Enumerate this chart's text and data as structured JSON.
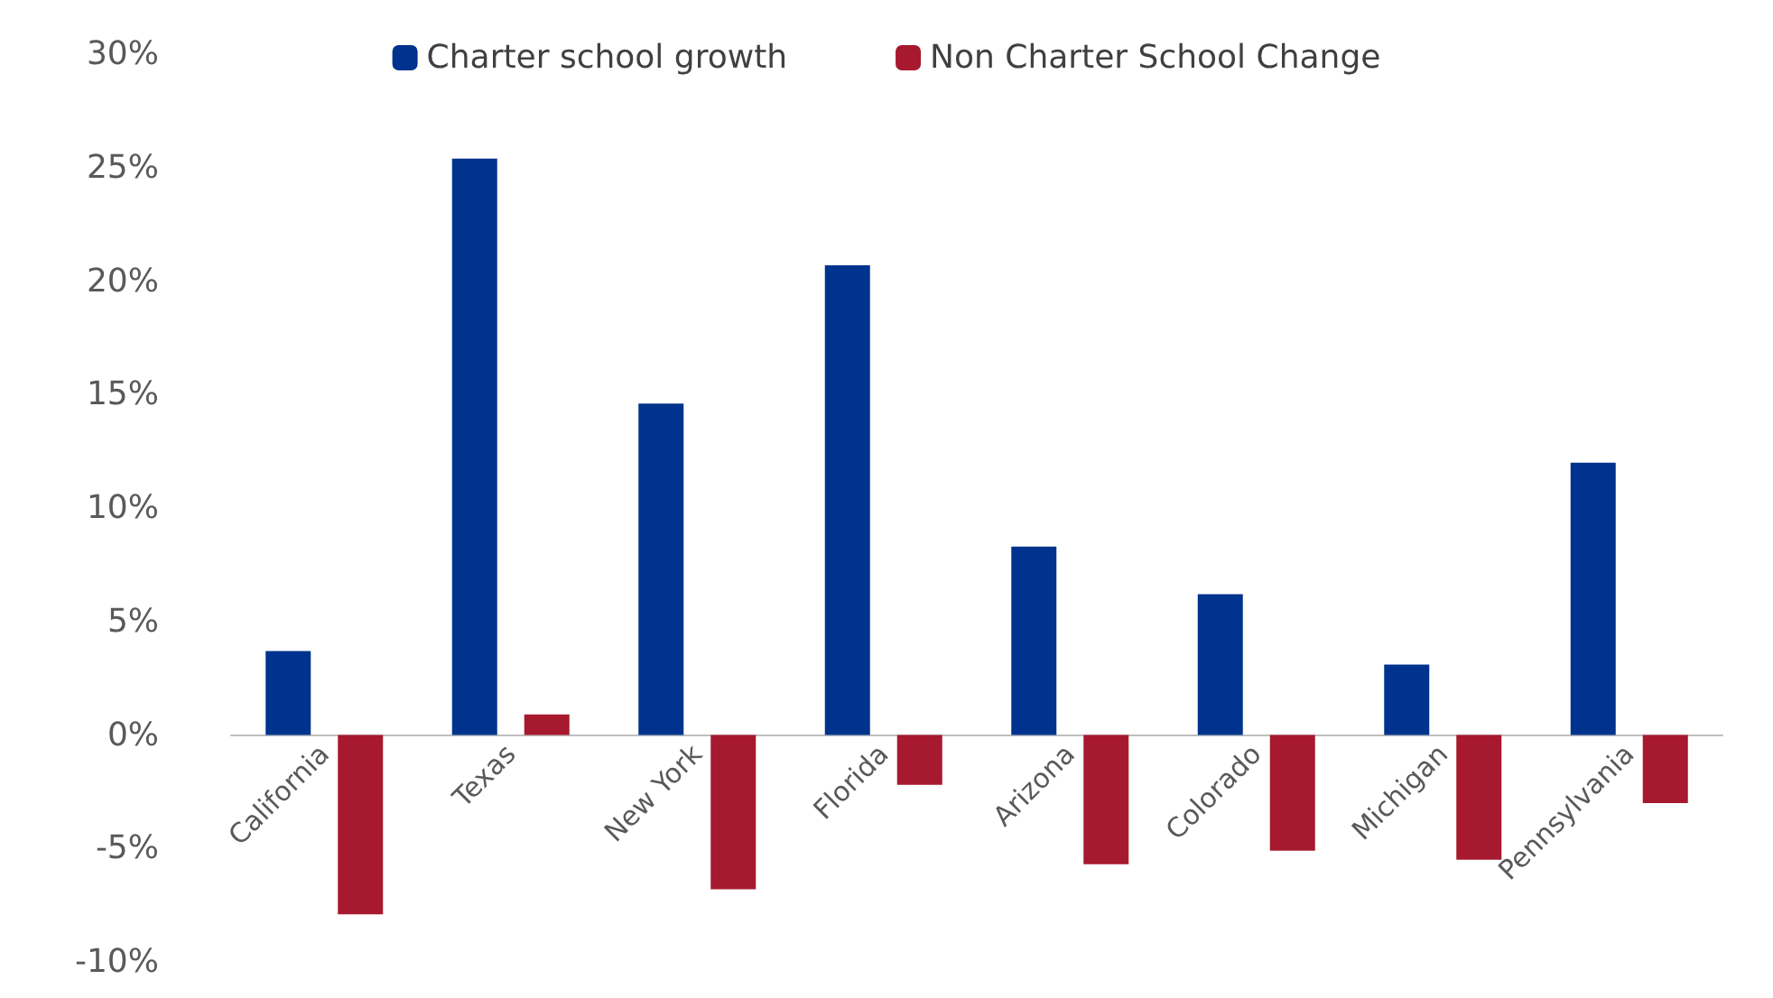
{
  "chart_data": {
    "type": "bar",
    "categories": [
      "California",
      "Texas",
      "New York",
      "Florida",
      "Arizona",
      "Colorado",
      "Michigan",
      "Pennsylvania"
    ],
    "series": [
      {
        "name": "Charter school growth",
        "color": "#00338d",
        "values": [
          3.7,
          25.4,
          14.6,
          20.7,
          8.3,
          6.2,
          3.1,
          12.0
        ]
      },
      {
        "name": "Non Charter School Change",
        "color": "#a6192e",
        "values": [
          -7.9,
          0.9,
          -6.8,
          -2.2,
          -5.7,
          -5.1,
          -5.5,
          -3.0
        ]
      }
    ],
    "ylim": [
      -10,
      30
    ],
    "yticks": [
      {
        "value": -10,
        "label": "-10%"
      },
      {
        "value": -5,
        "label": "-5%"
      },
      {
        "value": 0,
        "label": "0%"
      },
      {
        "value": 5,
        "label": "5%"
      },
      {
        "value": 10,
        "label": "10%"
      },
      {
        "value": 15,
        "label": "15%"
      },
      {
        "value": 20,
        "label": "20%"
      },
      {
        "value": 25,
        "label": "25%"
      },
      {
        "value": 30,
        "label": "30%"
      }
    ],
    "grid": false,
    "legend": "top"
  }
}
